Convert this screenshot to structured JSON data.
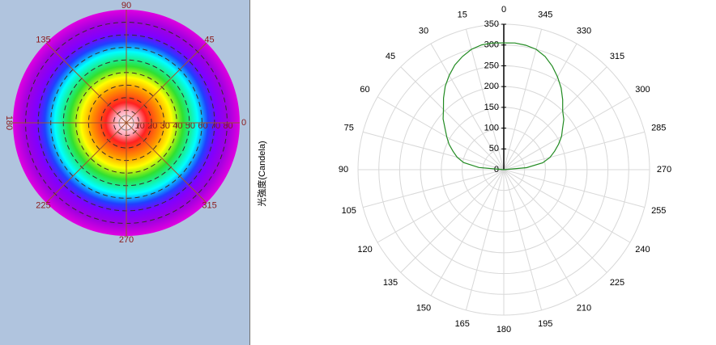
{
  "chart_data": [
    {
      "type": "polar-heatmap",
      "xticks": [
        0,
        45,
        90,
        135,
        180,
        225,
        270,
        315
      ],
      "ylim": [
        0,
        90
      ],
      "yticks": [
        10,
        20,
        30,
        40,
        50,
        60,
        70,
        80
      ],
      "colors": [
        "#ffffff",
        "#ffb0c0",
        "#ff2020",
        "#ff9000",
        "#ffff00",
        "#30e030",
        "#00ffff",
        "#2040ff",
        "#8000ff",
        "#a000e0",
        "#e000e0"
      ]
    },
    {
      "type": "polar",
      "y_label": "光強度(Candela)",
      "xticks": [
        0,
        15,
        30,
        45,
        60,
        75,
        90,
        105,
        120,
        135,
        150,
        165,
        180,
        195,
        210,
        225,
        240,
        255,
        270,
        285,
        300,
        315,
        330,
        345
      ],
      "ylim": [
        0,
        350
      ],
      "yticks": [
        0,
        50,
        100,
        150,
        200,
        250,
        300,
        350
      ],
      "grid": true,
      "x": [
        270,
        275,
        280,
        285,
        290,
        295,
        300,
        305,
        310,
        315,
        320,
        325,
        330,
        335,
        340,
        345,
        350,
        355,
        0,
        5,
        10,
        15,
        20,
        25,
        30,
        35,
        40,
        45,
        50,
        55,
        60,
        65,
        70,
        75,
        80,
        85,
        90
      ],
      "series": [
        {
          "color": "#228b22",
          "values": [
            0,
            55,
            95,
            115,
            130,
            145,
            160,
            172,
            188,
            200,
            220,
            240,
            258,
            275,
            290,
            300,
            304,
            306,
            305,
            306,
            305,
            300,
            290,
            278,
            262,
            245,
            225,
            205,
            190,
            172,
            158,
            145,
            130,
            116,
            98,
            60,
            0
          ]
        }
      ]
    }
  ]
}
